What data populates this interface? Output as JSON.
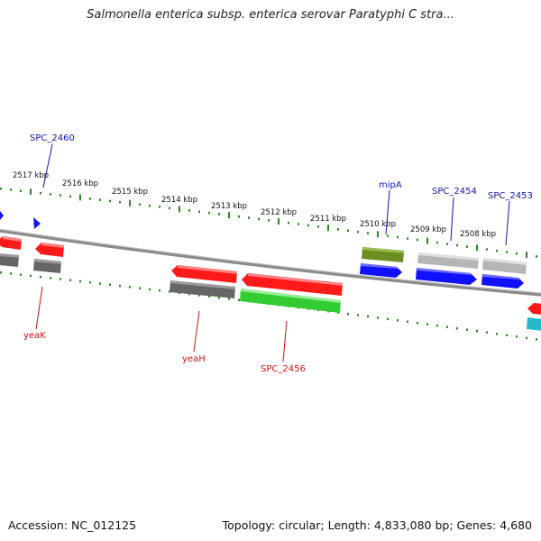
{
  "header": {
    "title": "Salmonella enterica subsp. enterica serovar Paratyphi C stra..."
  },
  "footer": {
    "accession": "Accession: NC_012125",
    "summary": "Topology: circular; Length: 4,833,080 bp; Genes: 4,680"
  },
  "scale": {
    "ticks": [
      "2517 kbp",
      "2516 kbp",
      "2515 kbp",
      "2514 kbp",
      "2513 kbp",
      "2512 kbp",
      "2511 kbp",
      "2510 kbp",
      "2509 kbp",
      "2508 kbp"
    ]
  },
  "labels": {
    "plus": [
      "SPC_2460",
      "mipA",
      "SPC_2454",
      "SPC_2453"
    ],
    "minus": [
      "yeaK",
      "yeaH",
      "SPC_2456"
    ]
  },
  "colors": {
    "backbone": "#7a7a7a",
    "tick": "#2a8a1f",
    "plus_label": "#1515b0",
    "minus_label": "#cc1111",
    "red": "#ff1a1a",
    "blue": "#1010ff",
    "green": "#33cc33",
    "olive": "#6b8e23",
    "gray": "#666666",
    "lightgray": "#bdbdbd",
    "cyan": "#22bbcc"
  }
}
